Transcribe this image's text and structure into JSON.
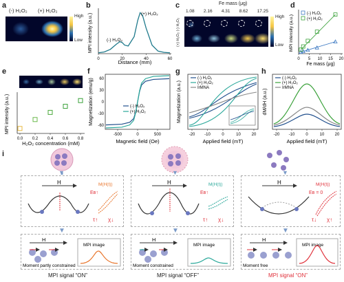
{
  "panels": {
    "a": {
      "label": "a",
      "lab_minus": "(-) H₂O₂",
      "lab_plus": "(+) H₂O₂",
      "scale_high": "High",
      "scale_low": "Low"
    },
    "b": {
      "label": "b",
      "ylabel": "MPI intensity (a.u.)",
      "xlabel": "Distance (mm)",
      "ticks_x": [
        "0",
        "20",
        "40",
        "60"
      ],
      "ann_minus": "(-) H₂O₂",
      "ann_plus": "(+) H₂O₂"
    },
    "c": {
      "label": "c",
      "title": "Fe mass (μg)",
      "fe_values": [
        "1.08",
        "2.16",
        "4.31",
        "8.62",
        "17.25"
      ],
      "row_label": "(+) H₂O₂ (-) H₂O₂",
      "scale_high": "High",
      "scale_low": "Low"
    },
    "d": {
      "label": "d",
      "ylabel": "MPI intensity (a.u.)",
      "xlabel": "Fe mass (μg)",
      "legend_minus": "(-) H₂O₂",
      "legend_plus": "(+) H₂O₂",
      "ticks_x": [
        "0",
        "5",
        "10",
        "15",
        "20"
      ]
    },
    "e": {
      "label": "e",
      "ylabel": "MPI intensity (a.u.)",
      "xlabel": "H₂O₂ concentration (mM)",
      "ticks_x": [
        "0.0",
        "0.2",
        "0.4",
        "0.6",
        "0.8"
      ]
    },
    "f": {
      "label": "f",
      "ylabel": "Magnetization (emu/g)",
      "xlabel": "Magnetic field (Oe)",
      "legend_minus": "(-) H₂O₂",
      "legend_plus": "(+) H₂O₂",
      "ticks_x": [
        "-500",
        "0",
        "500"
      ],
      "ticks_y": [
        "-60",
        "-30",
        "0",
        "30",
        "60"
      ]
    },
    "g": {
      "label": "g",
      "ylabel": "Magnetization (a.u.)",
      "xlabel": "Applied field (mT)",
      "legend": [
        "(-) H₂O₂",
        "(+) H₂O₂",
        "IrMNA"
      ],
      "ticks_x": [
        "-20",
        "-10",
        "0",
        "10",
        "20"
      ]
    },
    "h": {
      "label": "h",
      "ylabel": "dM/dH (a.u.)",
      "xlabel": "Applied field (mT)",
      "legend": [
        "(-) H₂O₂",
        "(+) H₂O₂",
        "IrMNA"
      ],
      "ticks_x": [
        "-20",
        "-10",
        "0",
        "10",
        "20"
      ]
    },
    "i": {
      "label": "i"
    }
  },
  "schemes": [
    {
      "eb": "Eʙ↑",
      "mh": "M(H(t))",
      "tau": "τ↑",
      "chi": "χ↓",
      "moment": "Moment partly constrained",
      "image": "MPI image",
      "signal": "MPI signal “ON”",
      "color": "#e8742a"
    },
    {
      "eb": "Eʙ↑",
      "mh": "M(H(t))",
      "tau": "τ↑",
      "chi": "χ↓",
      "moment": "Moment constrained",
      "image": "MPI image",
      "signal": "MPI signal “OFF”",
      "color": "#2aa89a"
    },
    {
      "eb": "Eʙ = 0",
      "mh": "M(H(t))",
      "tau": "τ↓",
      "chi": "χ↑",
      "moment": "Moment free",
      "image": "MPI image",
      "signal": "MPI signal “ON”",
      "color": "#e0303a"
    }
  ],
  "field_label": "H",
  "chart_data": [
    {
      "type": "line",
      "panel": "b",
      "xlabel": "Distance (mm)",
      "ylabel": "MPI intensity (a.u.)",
      "x": [
        0,
        5,
        10,
        15,
        18,
        20,
        22,
        25,
        30,
        33,
        35,
        37,
        40,
        45,
        50,
        55,
        60
      ],
      "y": [
        0.02,
        0.04,
        0.1,
        0.22,
        0.28,
        0.26,
        0.2,
        0.18,
        0.4,
        0.78,
        0.96,
        0.9,
        0.6,
        0.2,
        0.06,
        0.03,
        0.02
      ]
    },
    {
      "type": "scatter",
      "panel": "d",
      "xlabel": "Fe mass (μg)",
      "ylabel": "MPI intensity (a.u.)",
      "series": [
        {
          "name": "(-) H₂O₂",
          "x": [
            1.08,
            2.16,
            4.31,
            8.62,
            17.25
          ],
          "y": [
            0.04,
            0.06,
            0.09,
            0.15,
            0.3
          ]
        },
        {
          "name": "(+) H₂O₂",
          "x": [
            1.08,
            2.16,
            4.31,
            8.62,
            17.25
          ],
          "y": [
            0.1,
            0.18,
            0.32,
            0.55,
            0.98
          ]
        }
      ]
    },
    {
      "type": "scatter",
      "panel": "e",
      "xlabel": "H₂O₂ concentration (mM)",
      "ylabel": "MPI intensity (a.u.)",
      "x": [
        0.0,
        0.2,
        0.4,
        0.6,
        0.8
      ],
      "y": [
        0.1,
        0.35,
        0.55,
        0.72,
        0.88
      ]
    },
    {
      "type": "line",
      "panel": "f",
      "xlabel": "Magnetic field (Oe)",
      "ylabel": "Magnetization (emu/g)",
      "xlim": [
        -800,
        800
      ],
      "ylim": [
        -70,
        70
      ],
      "series": [
        {
          "name": "(-) H₂O₂",
          "x": [
            -800,
            -400,
            -200,
            -100,
            -50,
            0,
            50,
            100,
            200,
            400,
            800
          ],
          "y": [
            -62,
            -60,
            -55,
            -45,
            -28,
            0,
            28,
            45,
            55,
            60,
            62
          ]
        },
        {
          "name": "(+) H₂O₂",
          "x": [
            -800,
            -400,
            -200,
            -100,
            -50,
            0,
            50,
            100,
            200,
            400,
            800
          ],
          "y": [
            -70,
            -68,
            -62,
            -50,
            -30,
            0,
            30,
            50,
            62,
            68,
            70
          ]
        }
      ]
    }
  ]
}
